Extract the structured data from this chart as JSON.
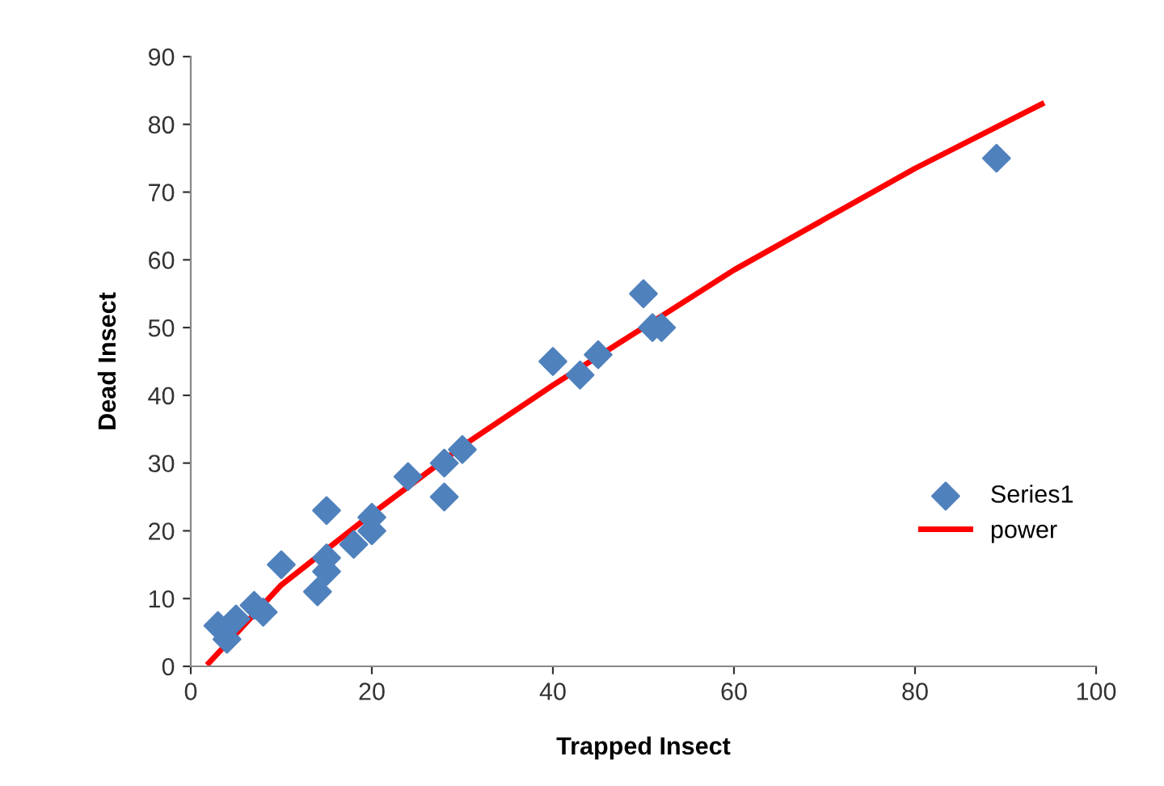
{
  "chart_data": {
    "type": "scatter",
    "xlabel": "Trapped Insect",
    "ylabel": "Dead Insect",
    "xlim": [
      0,
      100
    ],
    "xticks": [
      0,
      20,
      40,
      60,
      80,
      100
    ],
    "ylim": [
      0,
      90
    ],
    "yticks": [
      0,
      10,
      20,
      30,
      40,
      50,
      60,
      70,
      80,
      90
    ],
    "grid": false,
    "legend": "right",
    "series": [
      {
        "name": "Series1",
        "marker": "diamond",
        "color": "#4f81bd",
        "x": [
          3,
          4,
          5,
          7,
          8,
          10,
          14,
          15,
          15,
          15,
          18,
          20,
          20,
          24,
          28,
          28,
          30,
          40,
          43,
          45,
          50,
          51,
          52,
          89
        ],
        "values": [
          6,
          4,
          7,
          9,
          8,
          15,
          11,
          14,
          16,
          23,
          18,
          20,
          22,
          28,
          25,
          30,
          32,
          45,
          43,
          46,
          55,
          50,
          50,
          75
        ]
      },
      {
        "name": "power",
        "type": "line",
        "color": "#ff0000",
        "x": [
          2,
          10,
          20,
          30,
          40,
          50,
          60,
          70,
          80,
          94
        ],
        "values": [
          0.5,
          12,
          22.5,
          32.5,
          41.5,
          50,
          58.5,
          66,
          73.5,
          83
        ]
      }
    ]
  }
}
